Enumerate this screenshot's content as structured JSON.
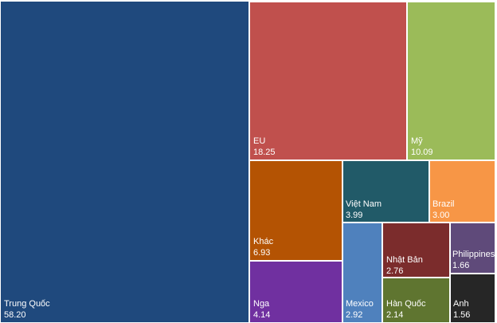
{
  "chart_data": {
    "type": "treemap",
    "items": [
      {
        "name": "Trung Quốc",
        "value": "58.20",
        "color": "#1f497d"
      },
      {
        "name": "EU",
        "value": "18.25",
        "color": "#c0504d"
      },
      {
        "name": "Mỹ",
        "value": "10.09",
        "color": "#9bbb59"
      },
      {
        "name": "Khác",
        "value": "6.93",
        "color": "#b45303"
      },
      {
        "name": "Việt Nam",
        "value": "3.99",
        "color": "#215a68"
      },
      {
        "name": "Brazil",
        "value": "3.00",
        "color": "#f79646"
      },
      {
        "name": "Nga",
        "value": "4.14",
        "color": "#7030a0"
      },
      {
        "name": "Mexico",
        "value": "2.92",
        "color": "#4f81bd"
      },
      {
        "name": "Nhật Bản",
        "value": "2.76",
        "color": "#7b2c2c"
      },
      {
        "name": "Philippines",
        "value": "1.66",
        "color": "#5f4a7a"
      },
      {
        "name": "Hàn Quốc",
        "value": "2.14",
        "color": "#5f7530"
      },
      {
        "name": "Anh",
        "value": "1.56",
        "color": "#262626"
      }
    ]
  }
}
